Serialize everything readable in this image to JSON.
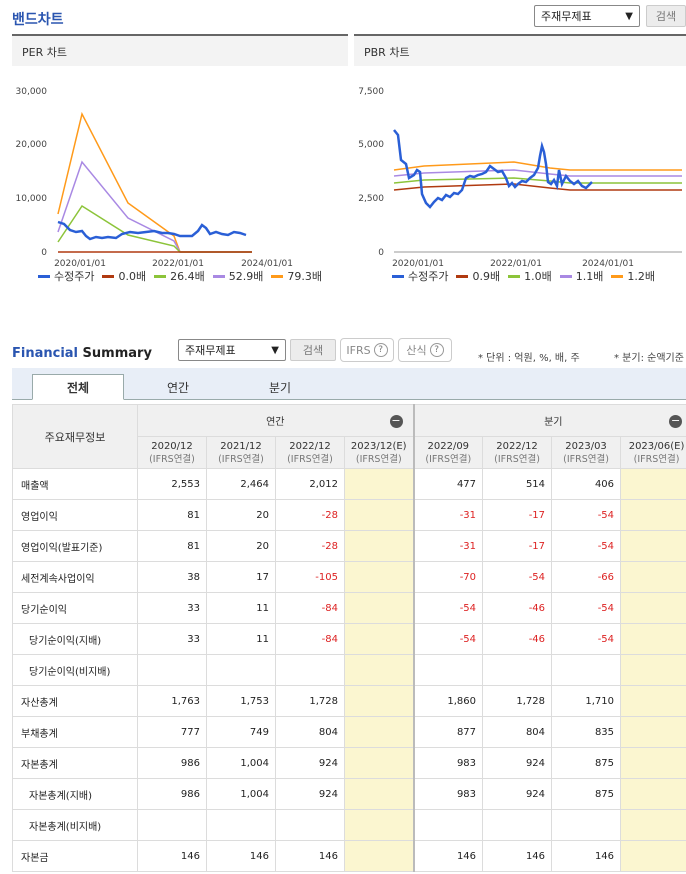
{
  "band": {
    "title": "밴드차트",
    "select_value": "주재무제표",
    "search_label": "검색"
  },
  "per_chart": {
    "title": "PER 차트",
    "yticks": [
      "30,000",
      "20,000",
      "10,000",
      "0"
    ],
    "xticks": [
      "2020/01/01",
      "2022/01/01",
      "2024/01/01"
    ],
    "legend": [
      "수정주가",
      "0.0배",
      "26.4배",
      "52.9배",
      "79.3배"
    ],
    "colors": [
      "#2a5fd6",
      "#b03a10",
      "#8cc43a",
      "#a989e3",
      "#ff9a1a"
    ]
  },
  "pbr_chart": {
    "title": "PBR 차트",
    "yticks": [
      "7,500",
      "5,000",
      "2,500",
      "0"
    ],
    "xticks": [
      "2020/01/01",
      "2022/01/01",
      "2024/01/01"
    ],
    "legend": [
      "수정주가",
      "0.9배",
      "1.0배",
      "1.1배",
      "1.2배"
    ],
    "colors": [
      "#2a5fd6",
      "#b03a10",
      "#8cc43a",
      "#a989e3",
      "#ff9a1a"
    ]
  },
  "fs": {
    "title_a": "Financial",
    "title_b": "Summary",
    "select_value": "주재무제표",
    "search_label": "검색",
    "ifrs_label": "IFRS",
    "calc_label": "산식",
    "unit_text": "* 단위 : 억원, %, 배, 주",
    "period_text": "* 분기: 순액기준",
    "tabs": [
      "전체",
      "연간",
      "분기"
    ],
    "head_label": "주요재무정보",
    "group_annual": "연간",
    "group_quarter": "분기",
    "columns": [
      {
        "period": "2020/12",
        "basis": "(IFRS연결)"
      },
      {
        "period": "2021/12",
        "basis": "(IFRS연결)"
      },
      {
        "period": "2022/12",
        "basis": "(IFRS연결)"
      },
      {
        "period": "2023/12(E)",
        "basis": "(IFRS연결)"
      },
      {
        "period": "2022/09",
        "basis": "(IFRS연결)"
      },
      {
        "period": "2022/12",
        "basis": "(IFRS연결)"
      },
      {
        "period": "2023/03",
        "basis": "(IFRS연결)"
      },
      {
        "period": "2023/06(E)",
        "basis": "(IFRS연결)"
      }
    ],
    "rows": [
      {
        "label": "매출액",
        "sub": false,
        "values": [
          "2,553",
          "2,464",
          "2,012",
          "",
          "477",
          "514",
          "406",
          ""
        ]
      },
      {
        "label": "영업이익",
        "sub": false,
        "values": [
          "81",
          "20",
          "-28",
          "",
          "-31",
          "-17",
          "-54",
          ""
        ]
      },
      {
        "label": "영업이익(발표기준)",
        "sub": false,
        "values": [
          "81",
          "20",
          "-28",
          "",
          "-31",
          "-17",
          "-54",
          ""
        ]
      },
      {
        "label": "세전계속사업이익",
        "sub": false,
        "values": [
          "38",
          "17",
          "-105",
          "",
          "-70",
          "-54",
          "-66",
          ""
        ]
      },
      {
        "label": "당기순이익",
        "sub": false,
        "values": [
          "33",
          "11",
          "-84",
          "",
          "-54",
          "-46",
          "-54",
          ""
        ]
      },
      {
        "label": "당기순이익(지배)",
        "sub": true,
        "values": [
          "33",
          "11",
          "-84",
          "",
          "-54",
          "-46",
          "-54",
          ""
        ]
      },
      {
        "label": "당기순이익(비지배)",
        "sub": true,
        "values": [
          "",
          "",
          "",
          "",
          "",
          "",
          "",
          ""
        ]
      },
      {
        "label": "자산총계",
        "sub": false,
        "values": [
          "1,763",
          "1,753",
          "1,728",
          "",
          "1,860",
          "1,728",
          "1,710",
          ""
        ]
      },
      {
        "label": "부채총계",
        "sub": false,
        "values": [
          "777",
          "749",
          "804",
          "",
          "877",
          "804",
          "835",
          ""
        ]
      },
      {
        "label": "자본총계",
        "sub": false,
        "values": [
          "986",
          "1,004",
          "924",
          "",
          "983",
          "924",
          "875",
          ""
        ]
      },
      {
        "label": "자본총계(지배)",
        "sub": true,
        "values": [
          "986",
          "1,004",
          "924",
          "",
          "983",
          "924",
          "875",
          ""
        ]
      },
      {
        "label": "자본총계(비지배)",
        "sub": true,
        "values": [
          "",
          "",
          "",
          "",
          "",
          "",
          "",
          ""
        ]
      },
      {
        "label": "자본금",
        "sub": false,
        "values": [
          "146",
          "146",
          "146",
          "",
          "146",
          "146",
          "146",
          ""
        ]
      }
    ]
  }
}
